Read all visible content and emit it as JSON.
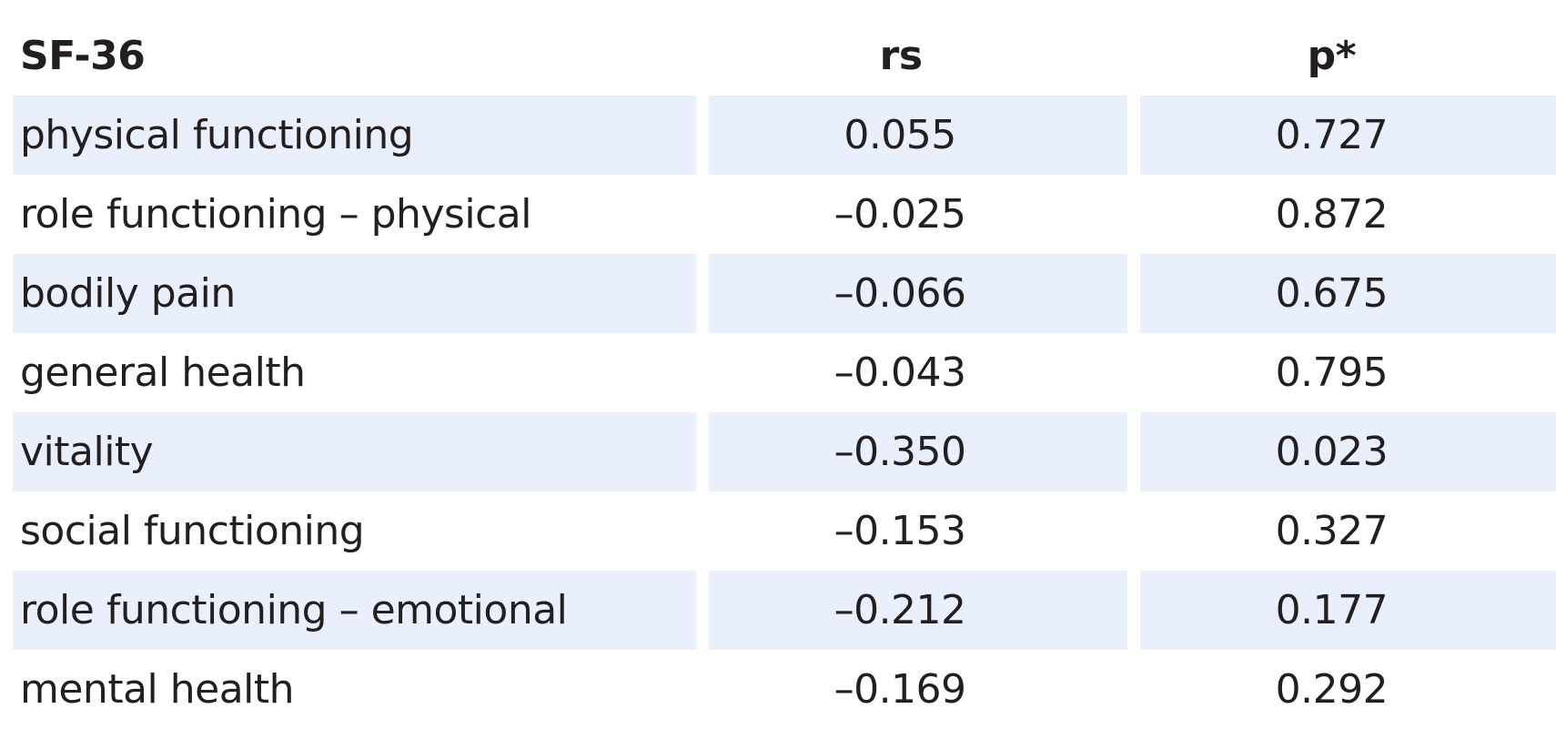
{
  "table": {
    "headers": [
      "SF-36",
      "rs",
      "p*"
    ],
    "rows": [
      {
        "label": "physical functioning",
        "rs": "0.055",
        "p": "0.727"
      },
      {
        "label": "role functioning – physical",
        "rs": "–0.025",
        "p": "0.872"
      },
      {
        "label": "bodily pain",
        "rs": "–0.066",
        "p": "0.675"
      },
      {
        "label": "general health",
        "rs": "–0.043",
        "p": "0.795"
      },
      {
        "label": "vitality",
        "rs": "–0.350",
        "p": "0.023"
      },
      {
        "label": "social functioning",
        "rs": "–0.153",
        "p": "0.327"
      },
      {
        "label": "role functioning – emotional",
        "rs": "–0.212",
        "p": "0.177"
      },
      {
        "label": "mental health",
        "rs": "–0.169",
        "p": "0.292"
      }
    ],
    "shade_color": "#e9f0fb"
  }
}
